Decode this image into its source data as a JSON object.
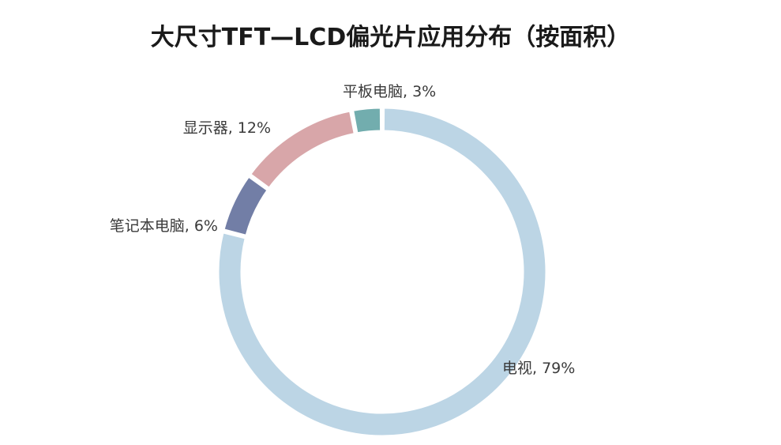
{
  "chart_data": {
    "type": "pie",
    "title": "大尺寸TFT—LCD偏光片应用分布（按面积）",
    "slices": [
      {
        "name": "电视",
        "value": 79,
        "label": "电视, 79%",
        "color": "#bcd5e5"
      },
      {
        "name": "笔记本电脑",
        "value": 6,
        "label": "笔记本电脑, 6%",
        "color": "#727ea6"
      },
      {
        "name": "显示器",
        "value": 12,
        "label": "显示器, 12%",
        "color": "#d8a6a9"
      },
      {
        "name": "平板电脑",
        "value": 3,
        "label": "平板电脑, 3%",
        "color": "#72adae"
      }
    ],
    "donut": true,
    "legend": "none"
  }
}
